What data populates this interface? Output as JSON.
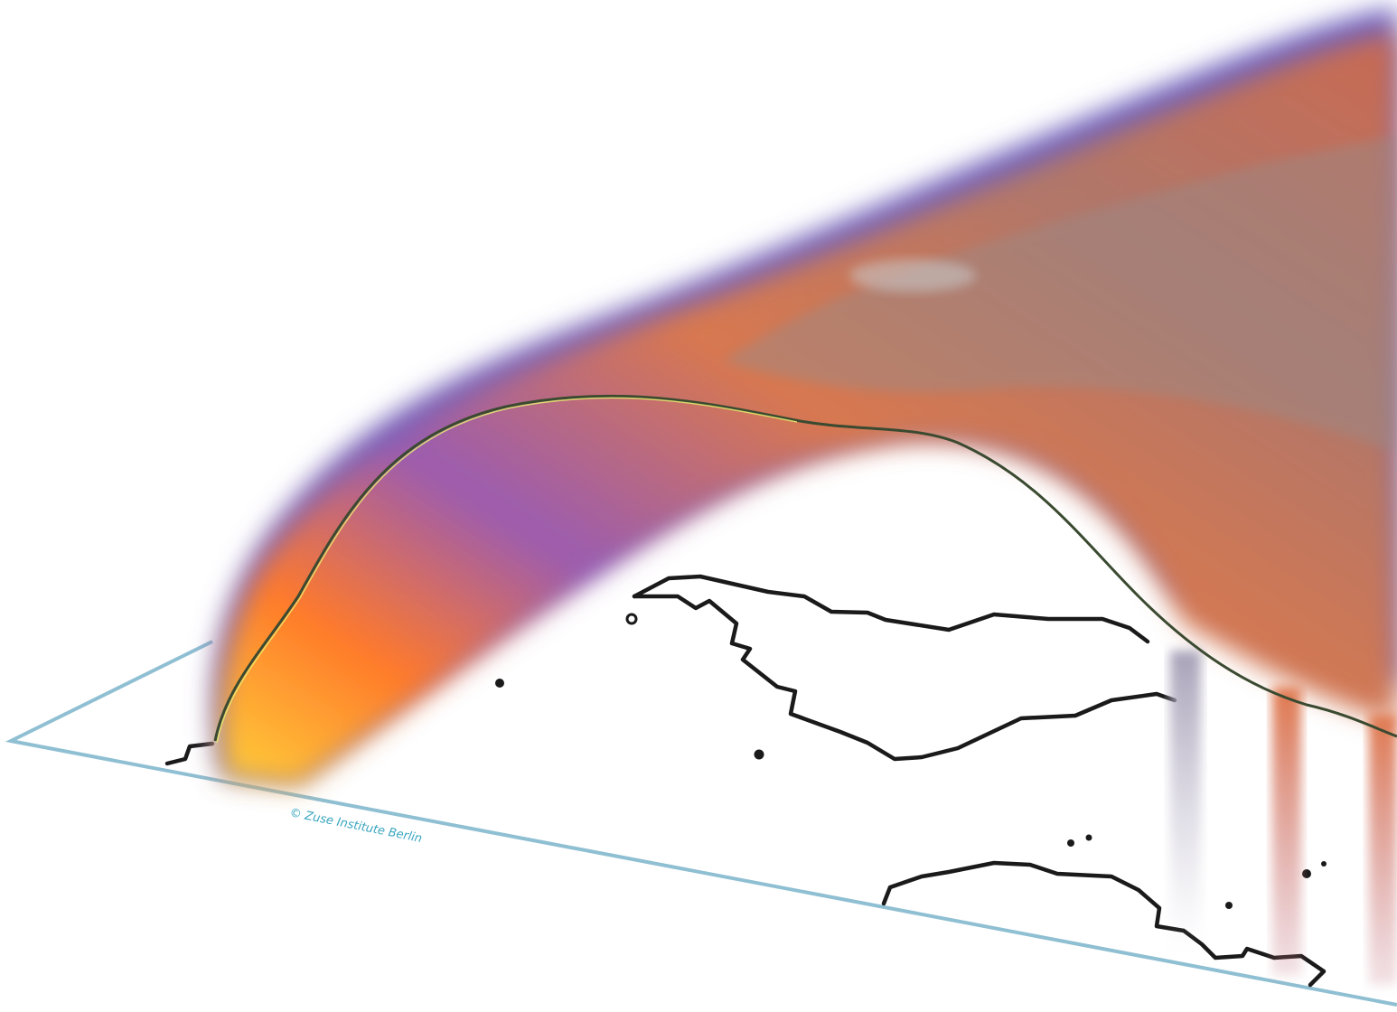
{
  "credit": "© Zuse Institute Berlin"
}
